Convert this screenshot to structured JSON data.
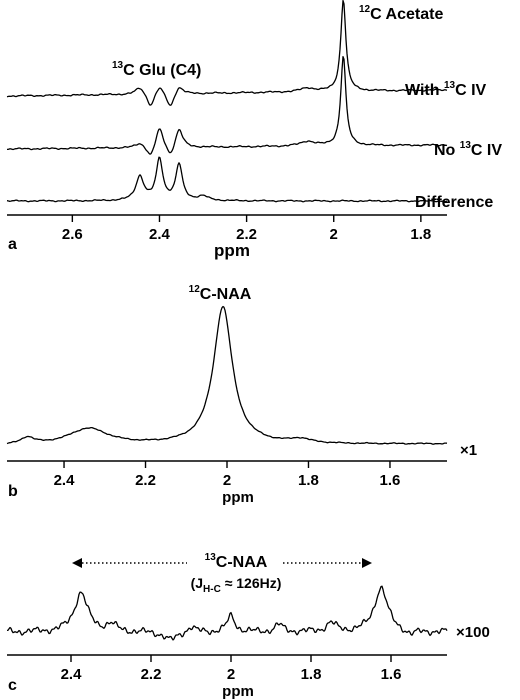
{
  "chart_data": [
    {
      "type": "line",
      "panel_label": "a",
      "xlabel": "ppm",
      "xlim": [
        2.75,
        1.74
      ],
      "x_reversed": true,
      "ticks": [
        "2.6",
        "2.4",
        "2.2",
        "2",
        "1.8"
      ],
      "tick_values": [
        2.6,
        2.4,
        2.2,
        2.0,
        1.8
      ],
      "annotations": [
        {
          "sup": "13",
          "text": "C Glu (C4)"
        },
        {
          "sup": "12",
          "text": "C Acetate"
        }
      ],
      "series": [
        {
          "name": "With 13C IV",
          "label": {
            "pre": "With ",
            "sup": "13",
            "post": "C IV"
          },
          "baseline": 0.0,
          "peaks": [
            {
              "x": 2.445,
              "h": 0.08,
              "w": 0.012
            },
            {
              "x": 2.4,
              "h": 0.1,
              "w": 0.011
            },
            {
              "x": 2.355,
              "h": 0.09,
              "w": 0.011
            },
            {
              "x": 1.978,
              "h": 1.0,
              "w": 0.007
            },
            {
              "x": 2.06,
              "h": 0.04,
              "w": 0.02
            }
          ],
          "dips": [
            {
              "x": 2.42,
              "h": 0.15,
              "w": 0.01
            },
            {
              "x": 2.375,
              "h": 0.16,
              "w": 0.01
            }
          ]
        },
        {
          "name": "No 13C IV",
          "label": {
            "pre": "No ",
            "sup": "13",
            "post": "C IV"
          },
          "baseline": 0.0,
          "peaks": [
            {
              "x": 2.445,
              "h": 0.05,
              "w": 0.012
            },
            {
              "x": 2.4,
              "h": 0.22,
              "w": 0.01
            },
            {
              "x": 2.355,
              "h": 0.2,
              "w": 0.01
            },
            {
              "x": 1.978,
              "h": 0.95,
              "w": 0.007
            },
            {
              "x": 2.06,
              "h": 0.05,
              "w": 0.02
            }
          ],
          "dips": [
            {
              "x": 2.42,
              "h": 0.12,
              "w": 0.01
            },
            {
              "x": 2.375,
              "h": 0.12,
              "w": 0.01
            }
          ]
        },
        {
          "name": "Difference",
          "label": {
            "pre": "Difference",
            "sup": "",
            "post": ""
          },
          "baseline": 0.0,
          "peaks": [
            {
              "x": 2.445,
              "h": 0.28,
              "w": 0.011
            },
            {
              "x": 2.4,
              "h": 0.48,
              "w": 0.009
            },
            {
              "x": 2.355,
              "h": 0.42,
              "w": 0.009
            },
            {
              "x": 2.3,
              "h": 0.05,
              "w": 0.015
            }
          ],
          "dips": []
        }
      ]
    },
    {
      "type": "line",
      "panel_label": "b",
      "xlabel": "ppm",
      "xlim": [
        2.54,
        1.46
      ],
      "x_reversed": true,
      "ticks": [
        "2.4",
        "2.2",
        "2",
        "1.8",
        "1.6"
      ],
      "tick_values": [
        2.4,
        2.2,
        2.0,
        1.8,
        1.6
      ],
      "scale_label": "×1",
      "annotations": [
        {
          "sup": "12",
          "text": "C-NAA"
        }
      ],
      "series": [
        {
          "name": "",
          "peaks": [
            {
              "x": 2.01,
              "h": 1.0,
              "w": 0.028
            },
            {
              "x": 2.34,
              "h": 0.12,
              "w": 0.06
            },
            {
              "x": 2.49,
              "h": 0.05,
              "w": 0.02
            },
            {
              "x": 1.82,
              "h": 0.03,
              "w": 0.03
            }
          ],
          "dips": []
        }
      ]
    },
    {
      "type": "line",
      "panel_label": "c",
      "xlabel": "ppm",
      "xlim": [
        2.56,
        1.46
      ],
      "x_reversed": true,
      "ticks": [
        "2.4",
        "2.2",
        "2",
        "1.8",
        "1.6"
      ],
      "tick_values": [
        2.4,
        2.2,
        2.0,
        1.8,
        1.6
      ],
      "scale_label": "×100",
      "annotations": [
        {
          "sup": "13",
          "text": "C-NAA"
        },
        {
          "sub": "H-C",
          "pre": "(J",
          "post": " ≈ 126Hz)"
        }
      ],
      "series": [
        {
          "name": "",
          "peaks": [
            {
              "x": 2.375,
              "h": 0.55,
              "w": 0.02
            },
            {
              "x": 1.625,
              "h": 0.62,
              "w": 0.02
            },
            {
              "x": 2.0,
              "h": 0.22,
              "w": 0.012
            },
            {
              "x": 2.3,
              "h": 0.1,
              "w": 0.015
            },
            {
              "x": 1.75,
              "h": 0.12,
              "w": 0.015
            },
            {
              "x": 2.1,
              "h": 0.08,
              "w": 0.012
            },
            {
              "x": 1.88,
              "h": 0.1,
              "w": 0.012
            }
          ],
          "dips": [
            {
              "x": 2.15,
              "h": 0.12,
              "w": 0.02
            },
            {
              "x": 1.55,
              "h": 0.06,
              "w": 0.015
            }
          ]
        }
      ]
    }
  ]
}
